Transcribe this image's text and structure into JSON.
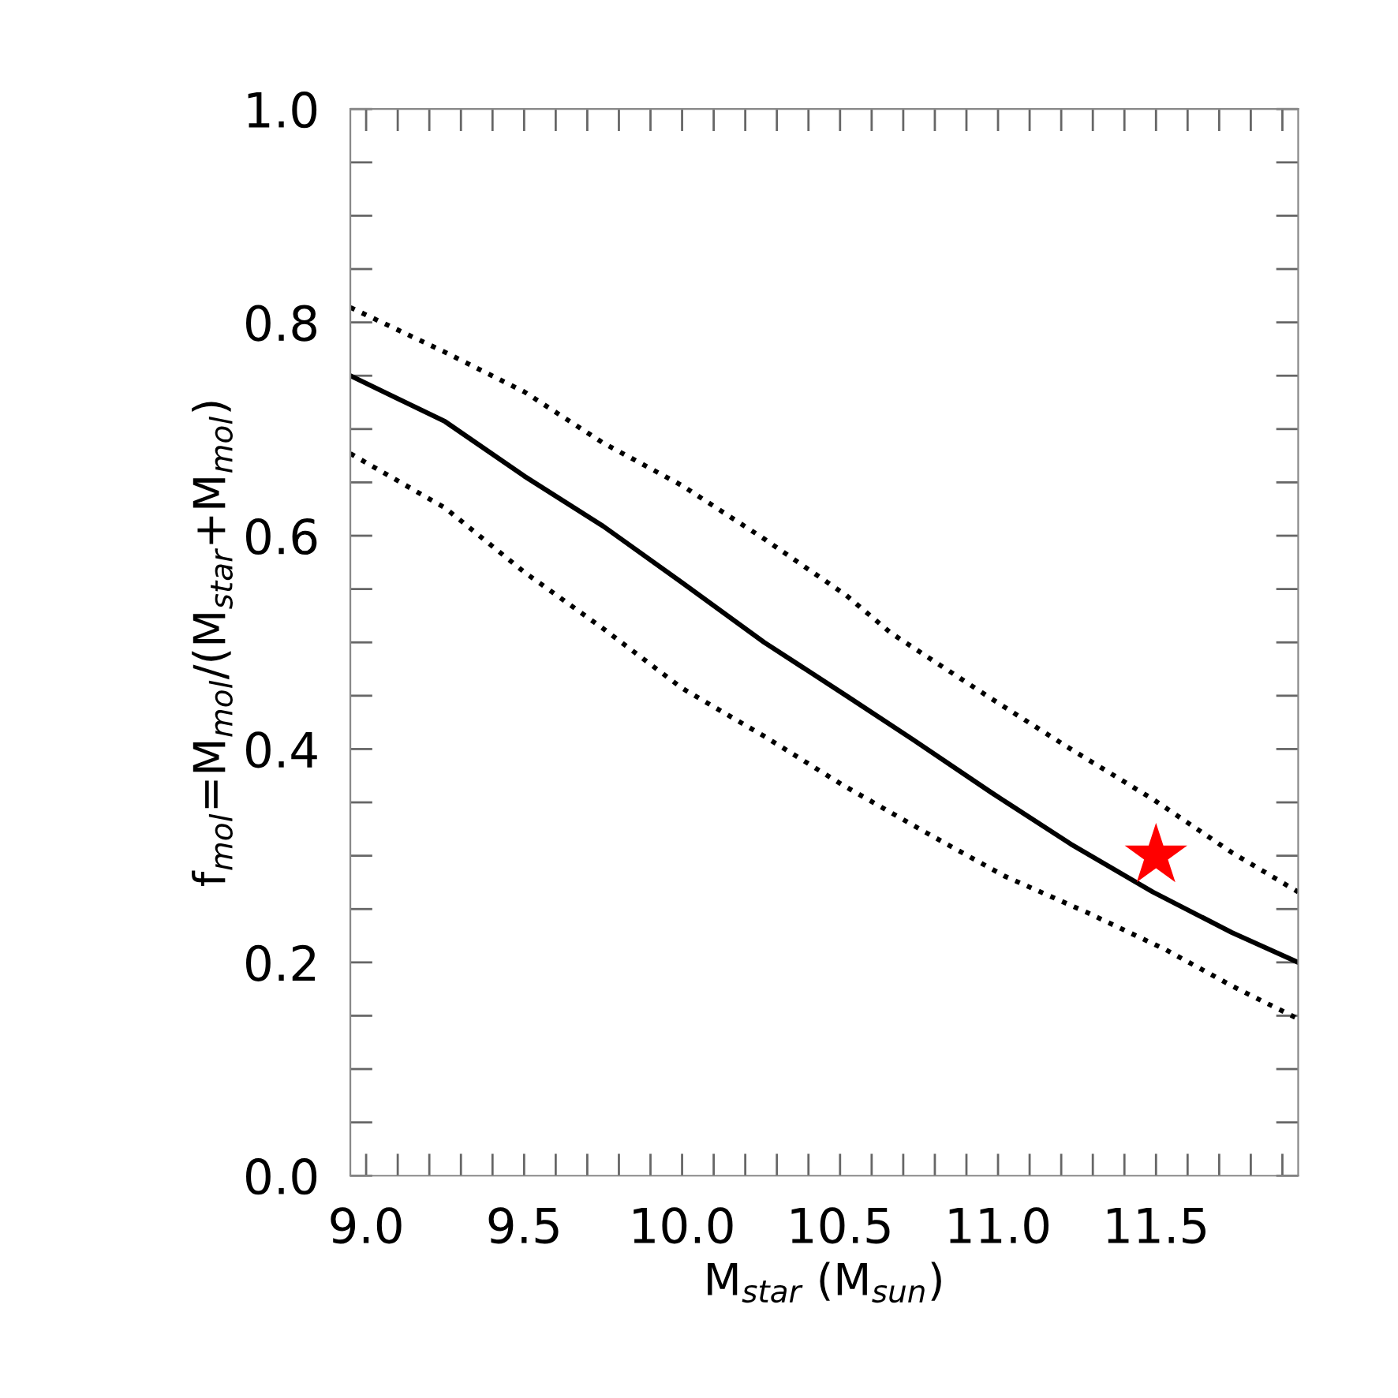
{
  "chart_data": {
    "type": "line",
    "xlabel": "M$_{star}$ (M$_{sun}$)",
    "ylabel": "f$_{mol}$=M$_{mol}$/(M$_{star}$+M$_{mol}$)",
    "xlim": [
      8.95,
      11.95
    ],
    "ylim": [
      0.0,
      1.0
    ],
    "xticks": [
      {
        "value": 9.0,
        "label": "9.0"
      },
      {
        "value": 9.1,
        "label": null
      },
      {
        "value": 9.2,
        "label": null
      },
      {
        "value": 9.3,
        "label": null
      },
      {
        "value": 9.4,
        "label": null
      },
      9.5,
      {
        "value": 9.6,
        "label": null
      },
      {
        "value": 9.7,
        "label": null
      },
      {
        "value": 9.8,
        "label": null
      },
      {
        "value": 9.9,
        "label": null
      },
      {
        "value": 10.0,
        "label": "10.0"
      },
      {
        "value": 10.1,
        "label": null
      },
      {
        "value": 10.2,
        "label": null
      },
      {
        "value": 10.3,
        "label": null
      },
      {
        "value": 10.4,
        "label": null
      },
      10.5,
      {
        "value": 10.6,
        "label": null
      },
      {
        "value": 10.7,
        "label": null
      },
      {
        "value": 10.8,
        "label": null
      },
      {
        "value": 10.9,
        "label": null
      },
      {
        "value": 11.0,
        "label": "11.0"
      },
      {
        "value": 11.1,
        "label": null
      },
      {
        "value": 11.2,
        "label": null
      },
      {
        "value": 11.3,
        "label": null
      },
      {
        "value": 11.4,
        "label": null
      },
      11.5,
      {
        "value": 11.6,
        "label": null
      },
      {
        "value": 11.7,
        "label": null
      },
      {
        "value": 11.8,
        "label": null
      },
      {
        "value": 11.9,
        "label": null
      }
    ],
    "yticks": [
      {
        "value": 0.0,
        "label": "0.0"
      },
      {
        "value": 0.05,
        "label": null
      },
      {
        "value": 0.1,
        "label": null
      },
      {
        "value": 0.15,
        "label": null
      },
      0.2,
      {
        "value": 0.25,
        "label": null
      },
      {
        "value": 0.3,
        "label": null
      },
      {
        "value": 0.35,
        "label": null
      },
      0.4,
      {
        "value": 0.45,
        "label": null
      },
      {
        "value": 0.5,
        "label": null
      },
      {
        "value": 0.55,
        "label": null
      },
      0.6,
      {
        "value": 0.65,
        "label": null
      },
      {
        "value": 0.7,
        "label": null
      },
      {
        "value": 0.75,
        "label": null
      },
      0.8,
      {
        "value": 0.85,
        "label": null
      },
      {
        "value": 0.9,
        "label": null
      },
      {
        "value": 0.95,
        "label": null
      },
      {
        "value": 1.0,
        "label": "1.0"
      }
    ],
    "grid": false,
    "legend": false,
    "series": [
      {
        "color": "#000000",
        "line_style": "solid",
        "marker": "none",
        "x": [
          8.95,
          9.25,
          9.5,
          9.75,
          10.0,
          10.26,
          10.52,
          10.73,
          10.98,
          11.23,
          11.49,
          11.74,
          11.95
        ],
        "values": [
          0.75,
          0.707,
          0.656,
          0.609,
          0.556,
          0.5,
          0.45,
          0.409,
          0.359,
          0.311,
          0.266,
          0.228,
          0.2
        ]
      },
      {
        "color": "#000000",
        "line_style": "dotted",
        "marker": "none",
        "x": [
          8.95,
          9.25,
          9.5,
          9.75,
          10.0,
          10.26,
          10.52,
          10.66,
          10.98,
          11.23,
          11.49,
          11.74,
          11.95
        ],
        "values": [
          0.814,
          0.772,
          0.735,
          0.687,
          0.647,
          0.597,
          0.544,
          0.509,
          0.447,
          0.4,
          0.353,
          0.303,
          0.266
        ]
      },
      {
        "color": "#000000",
        "line_style": "dotted",
        "marker": "none",
        "x": [
          8.95,
          9.25,
          9.5,
          9.75,
          10.0,
          10.26,
          10.51,
          10.77,
          11.02,
          11.28,
          11.53,
          11.74,
          11.95
        ],
        "values": [
          0.677,
          0.626,
          0.566,
          0.513,
          0.457,
          0.412,
          0.366,
          0.322,
          0.281,
          0.247,
          0.212,
          0.178,
          0.147
        ]
      },
      {
        "type": "scatter",
        "color": "#ff0000",
        "marker": "star",
        "x": [
          11.5
        ],
        "values": [
          0.3
        ]
      }
    ]
  }
}
